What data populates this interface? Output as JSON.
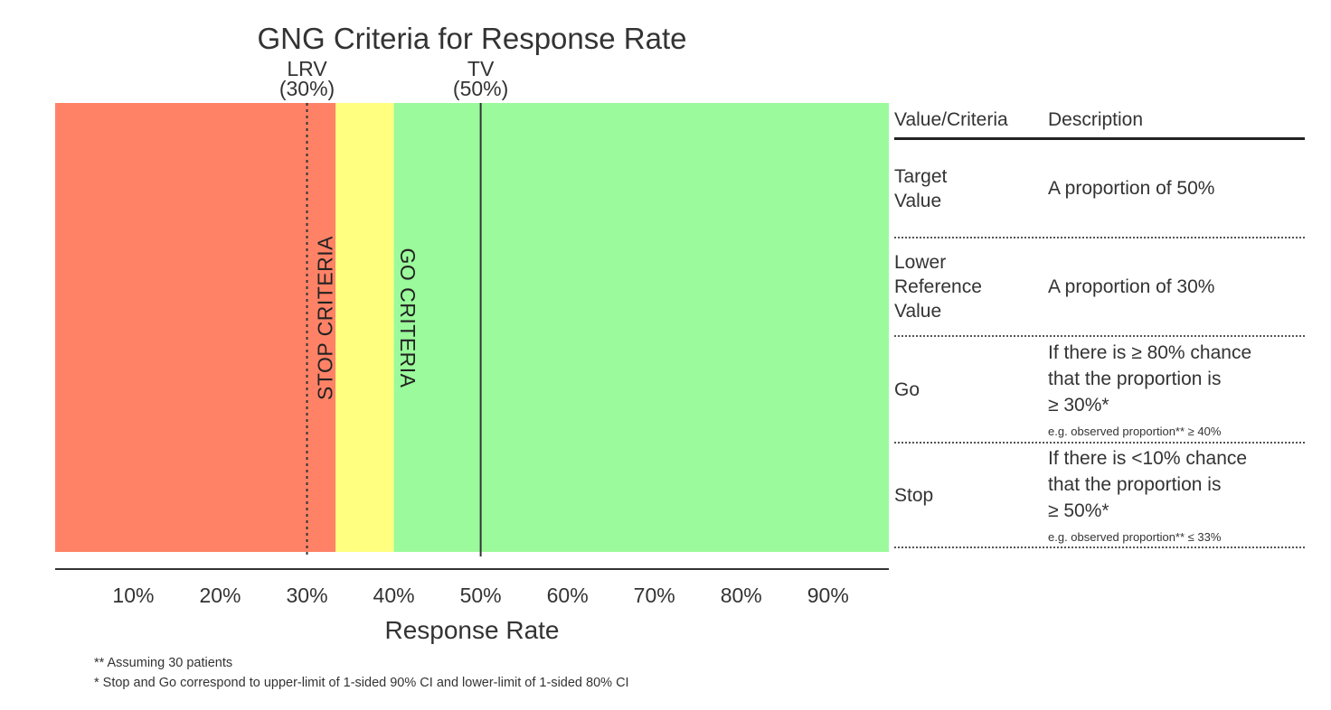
{
  "chart_data": {
    "type": "zone-bar",
    "title": "GNG Criteria for Response Rate",
    "xlabel": "Response Rate",
    "xlim": [
      1,
      97
    ],
    "ticks": [
      10,
      20,
      30,
      40,
      50,
      60,
      70,
      80,
      90
    ],
    "tick_labels": [
      "10%",
      "20%",
      "30%",
      "40%",
      "50%",
      "60%",
      "70%",
      "80%",
      "90%"
    ],
    "zones": [
      {
        "name": "stop",
        "from": 1,
        "to": 33.3,
        "color": "#FF8266"
      },
      {
        "name": "consider",
        "from": 33.3,
        "to": 40,
        "color": "#FFFF80"
      },
      {
        "name": "go",
        "from": 40,
        "to": 97,
        "color": "#9BFA9B"
      }
    ],
    "zone_labels": [
      {
        "text": "STOP CRITERIA",
        "at": 32.3,
        "direction": "up"
      },
      {
        "text": "GO CRITERIA",
        "at": 41.4,
        "direction": "down"
      }
    ],
    "reference_lines": [
      {
        "name": "LRV",
        "value_label": "(30%)",
        "x": 30,
        "style": "dotted"
      },
      {
        "name": "TV",
        "value_label": "(50%)",
        "x": 50,
        "style": "solid"
      }
    ]
  },
  "table": {
    "headers": {
      "value": "Value/Criteria",
      "description": "Description"
    },
    "rows": [
      {
        "value_lines": [
          "Target",
          "Value"
        ],
        "desc_lines": [
          "A proportion of 50%"
        ],
        "note": ""
      },
      {
        "value_lines": [
          "Lower",
          "Reference",
          "Value"
        ],
        "desc_lines": [
          "A proportion of 30%"
        ],
        "note": ""
      },
      {
        "value_lines": [
          "Go"
        ],
        "desc_lines": [
          "If there is ≥ 80% chance",
          "that the proportion is",
          "≥ 30%*"
        ],
        "note": "e.g. observed proportion** ≥ 40%"
      },
      {
        "value_lines": [
          "Stop"
        ],
        "desc_lines": [
          "If there is <10% chance",
          "that the proportion is",
          "≥ 50%*"
        ],
        "note": "e.g. observed proportion** ≤ 33%"
      }
    ]
  },
  "footnotes": [
    "** Assuming 30 patients",
    "* Stop and Go correspond to upper-limit of 1-sided 90% CI and lower-limit of 1-sided 80% CI"
  ]
}
